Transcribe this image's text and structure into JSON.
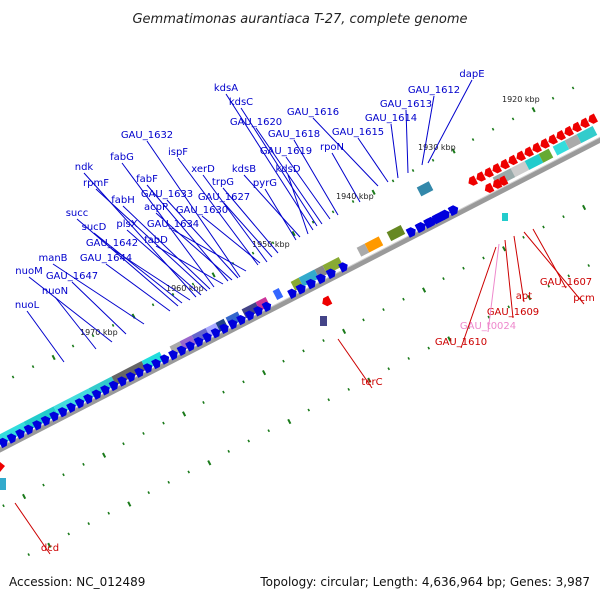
{
  "title": "Gemmatimonas aurantiaca T-27, complete genome",
  "footer": {
    "accession": "Accession: NC_012489",
    "summary": "Topology: circular; Length: 4,636,964 bp; Genes: 3,987"
  },
  "colors": {
    "forward_gene": "#0000dd",
    "reverse_gene": "#ee0000",
    "forward_label": "#0000cc",
    "reverse_label": "#cc0000",
    "trna_label": "#ee88cc",
    "backbone": "#999999",
    "tick": "#1a7a1a"
  },
  "kbp_marks": [
    "1920 kbp",
    "1930 kbp",
    "1940 kbp",
    "1950 kbp",
    "1960 kbp",
    "1970 kbp"
  ],
  "forward_labels": [
    "dapE",
    "GAU_1612",
    "GAU_1613",
    "GAU_1614",
    "GAU_1615",
    "kdsA",
    "kdsC",
    "GAU_1616",
    "GAU_1620",
    "GAU_1618",
    "GAU_1619",
    "rpoN",
    "GAU_1632",
    "ispF",
    "fabG",
    "xerD",
    "kdsB",
    "kdsD",
    "ndk",
    "trpG",
    "pyrG",
    "fabF",
    "rpmF",
    "GAU_1633",
    "GAU_1627",
    "fabH",
    "acpP",
    "GAU_1630",
    "succ",
    "GAU_1634",
    "plsX",
    "sucD",
    "fabD",
    "GAU_1642",
    "manB",
    "GAU_1644",
    "nuoM",
    "GAU_1647",
    "nuoN",
    "nuoL"
  ],
  "reverse_labels": [
    "GAU_1607",
    "pcm",
    "apt",
    "GAU_1609",
    "GAU_t0024",
    "GAU_1610",
    "terC",
    "dcd"
  ]
}
